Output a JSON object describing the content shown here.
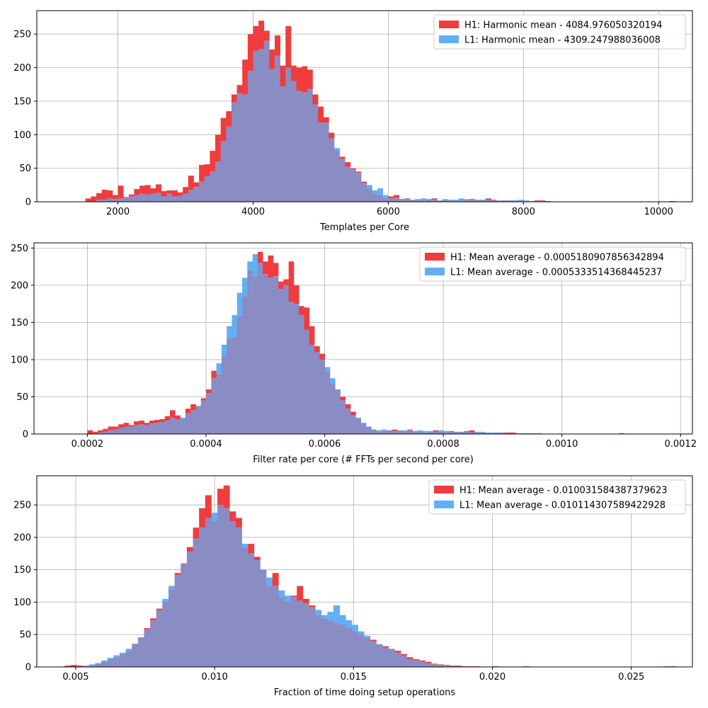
{
  "figure": {
    "background": "#ffffff"
  },
  "colors": {
    "H1": "#f03c3c",
    "L1": "#61aff5",
    "overlap": "#8a8cc4",
    "grid": "#b0b0b0"
  },
  "chart_data": [
    {
      "type": "bar",
      "xlabel": "Templates per Core",
      "ylabel": "",
      "xlim": [
        800,
        10500
      ],
      "ylim": [
        0,
        285
      ],
      "xticks": [
        2000,
        4000,
        6000,
        8000,
        10000
      ],
      "xtick_labels": [
        "2000",
        "4000",
        "6000",
        "8000",
        "10000"
      ],
      "yticks": [
        0,
        50,
        100,
        150,
        200,
        250
      ],
      "ytick_labels": [
        "0",
        "50",
        "100",
        "150",
        "200",
        "250"
      ],
      "grid": true,
      "legend_position": "top-right",
      "bin_edges": {
        "start": 1200,
        "width": 80
      },
      "series": [
        {
          "name": "H1",
          "label": "H1: Harmonic mean  - 4084.976050320194",
          "values": [
            0,
            0,
            0,
            0,
            5,
            8,
            13,
            18,
            17,
            10,
            24,
            7,
            11,
            19,
            24,
            25,
            20,
            26,
            16,
            17,
            17,
            14,
            22,
            39,
            29,
            55,
            56,
            76,
            100,
            125,
            135,
            160,
            174,
            212,
            250,
            262,
            270,
            255,
            227,
            248,
            203,
            262,
            203,
            200,
            202,
            197,
            160,
            142,
            126,
            103,
            76,
            67,
            59,
            50,
            45,
            30,
            20,
            12,
            10,
            5,
            8,
            10,
            4,
            5,
            3,
            3,
            2,
            4,
            5,
            2,
            2,
            2,
            2,
            1,
            3,
            4,
            3,
            3,
            5,
            3,
            0,
            2,
            2,
            2,
            0,
            0,
            0,
            2,
            2,
            1,
            0,
            0,
            0,
            0,
            0,
            0,
            0,
            0,
            0,
            0,
            0,
            0,
            0,
            0,
            0,
            0,
            0,
            0,
            0,
            0,
            0,
            0,
            1
          ]
        },
        {
          "name": "L1",
          "label": "L1: Harmonic mean  - 4309.247988036008",
          "values": [
            0,
            0,
            0,
            0,
            0,
            0,
            3,
            3,
            5,
            4,
            5,
            6,
            8,
            10,
            12,
            11,
            12,
            13,
            8,
            12,
            8,
            9,
            12,
            18,
            22,
            30,
            38,
            45,
            60,
            90,
            112,
            148,
            162,
            160,
            195,
            225,
            228,
            240,
            198,
            218,
            172,
            200,
            180,
            165,
            163,
            168,
            145,
            118,
            118,
            95,
            80,
            64,
            52,
            49,
            43,
            28,
            25,
            17,
            20,
            10,
            5,
            6,
            3,
            4,
            3,
            4,
            5,
            4,
            3,
            2,
            4,
            3,
            3,
            5,
            4,
            3,
            3,
            3,
            3,
            2,
            2,
            2,
            2,
            2,
            3,
            2,
            1,
            1,
            1,
            0,
            0,
            0,
            0,
            0,
            0,
            0,
            0,
            0,
            0,
            0,
            0,
            0,
            0,
            0,
            0,
            0,
            0,
            0,
            0,
            0,
            0,
            0,
            0
          ]
        }
      ]
    },
    {
      "type": "bar",
      "xlabel": "Filter rate per core (# FFTs per second per core)",
      "ylabel": "",
      "xlim": [
        0.00011,
        0.00122
      ],
      "ylim": [
        0,
        257
      ],
      "xticks": [
        0.0002,
        0.0004,
        0.0006,
        0.0008,
        0.001,
        0.0012
      ],
      "xtick_labels": [
        "0.0002",
        "0.0004",
        "0.0006",
        "0.0008",
        "0.0010",
        "0.0012"
      ],
      "yticks": [
        0,
        50,
        100,
        150,
        200,
        250
      ],
      "ytick_labels": [
        "0",
        "50",
        "100",
        "150",
        "200",
        "250"
      ],
      "grid": true,
      "legend_position": "top-right",
      "bin_edges": {
        "start": 0.0002,
        "width": 8.7e-06
      },
      "series": [
        {
          "name": "H1",
          "label": "H1: Mean average - 0.0005180907856342894",
          "values": [
            5,
            3,
            5,
            7,
            10,
            10,
            13,
            15,
            12,
            17,
            18,
            15,
            18,
            19,
            20,
            24,
            32,
            25,
            20,
            34,
            40,
            37,
            48,
            60,
            85,
            80,
            105,
            128,
            130,
            158,
            185,
            220,
            212,
            245,
            232,
            240,
            230,
            205,
            208,
            232,
            200,
            172,
            170,
            145,
            118,
            108,
            85,
            68,
            60,
            50,
            40,
            30,
            21,
            15,
            10,
            6,
            3,
            4,
            5,
            6,
            5,
            4,
            6,
            4,
            3,
            2,
            3,
            5,
            3,
            2,
            4,
            3,
            3,
            4,
            5,
            2,
            2,
            2,
            1,
            2,
            2,
            2,
            2,
            0,
            0,
            0,
            0,
            0,
            0,
            0,
            0,
            0,
            0,
            0,
            0,
            0,
            0,
            0,
            0,
            0,
            0,
            0,
            0,
            1
          ]
        },
        {
          "name": "L1",
          "label": "L1: Mean average - 0.0005333514368445237",
          "values": [
            0,
            1,
            2,
            3,
            5,
            6,
            8,
            10,
            10,
            12,
            13,
            12,
            14,
            15,
            16,
            18,
            22,
            20,
            22,
            28,
            32,
            38,
            45,
            55,
            75,
            95,
            120,
            145,
            160,
            190,
            210,
            232,
            242,
            230,
            215,
            210,
            212,
            195,
            200,
            178,
            175,
            160,
            140,
            120,
            110,
            100,
            90,
            75,
            60,
            45,
            34,
            25,
            22,
            15,
            10,
            6,
            5,
            6,
            5,
            4,
            5,
            5,
            5,
            4,
            5,
            4,
            4,
            3,
            5,
            4,
            3,
            3,
            3,
            3,
            2,
            3,
            3,
            2,
            2,
            2,
            2,
            1,
            1,
            1,
            1,
            1,
            1,
            1,
            0,
            0,
            0,
            0,
            0,
            0,
            0,
            0,
            0,
            0,
            0,
            0,
            0,
            0,
            0,
            0
          ]
        }
      ]
    },
    {
      "type": "bar",
      "xlabel": "Fraction of time doing setup operations",
      "ylabel": "",
      "xlim": [
        0.0036,
        0.0272
      ],
      "ylim": [
        0,
        295
      ],
      "xticks": [
        0.005,
        0.01,
        0.015,
        0.02,
        0.025
      ],
      "xtick_labels": [
        "0.005",
        "0.010",
        "0.015",
        "0.020",
        "0.025"
      ],
      "yticks": [
        0,
        50,
        100,
        150,
        200,
        250
      ],
      "ytick_labels": [
        "0",
        "50",
        "100",
        "150",
        "200",
        "250"
      ],
      "grid": true,
      "legend_position": "top-right",
      "bin_edges": {
        "start": 0.0046,
        "width": 0.00022
      },
      "series": [
        {
          "name": "H1",
          "label": "H1: Mean average - 0.010031584387379623",
          "values": [
            2,
            3,
            2,
            1,
            2,
            5,
            8,
            12,
            15,
            20,
            25,
            35,
            45,
            60,
            75,
            90,
            100,
            120,
            145,
            160,
            185,
            215,
            245,
            265,
            225,
            275,
            280,
            240,
            230,
            185,
            190,
            170,
            150,
            125,
            145,
            108,
            100,
            110,
            125,
            105,
            95,
            80,
            75,
            72,
            68,
            65,
            60,
            55,
            50,
            45,
            42,
            35,
            32,
            28,
            25,
            20,
            15,
            12,
            10,
            8,
            5,
            4,
            3,
            2,
            2,
            1,
            1,
            1,
            0,
            0,
            1,
            0,
            0,
            0,
            0,
            1,
            0,
            0,
            0,
            0,
            0,
            0,
            0,
            0,
            0,
            0,
            0,
            0,
            0,
            0,
            0,
            0,
            0,
            0,
            0,
            0,
            0,
            0,
            0,
            1
          ]
        },
        {
          "name": "L1",
          "label": "L1: Mean average - 0.010114307589422928",
          "values": [
            0,
            0,
            0,
            2,
            4,
            6,
            10,
            14,
            18,
            22,
            28,
            36,
            46,
            58,
            72,
            88,
            105,
            125,
            142,
            160,
            178,
            198,
            215,
            230,
            238,
            250,
            245,
            225,
            215,
            190,
            175,
            165,
            150,
            138,
            125,
            118,
            110,
            108,
            102,
            98,
            92,
            88,
            80,
            85,
            95,
            80,
            72,
            65,
            55,
            48,
            40,
            35,
            30,
            28,
            22,
            18,
            12,
            10,
            8,
            6,
            4,
            3,
            2,
            1,
            1,
            1,
            0,
            0,
            0,
            0,
            0,
            0,
            0,
            0,
            0,
            0,
            0,
            0,
            0,
            0,
            0,
            0,
            0,
            0,
            0,
            0,
            0,
            0,
            0,
            0,
            0,
            0,
            0,
            0,
            0,
            0,
            0,
            0,
            1,
            0
          ]
        }
      ]
    }
  ]
}
